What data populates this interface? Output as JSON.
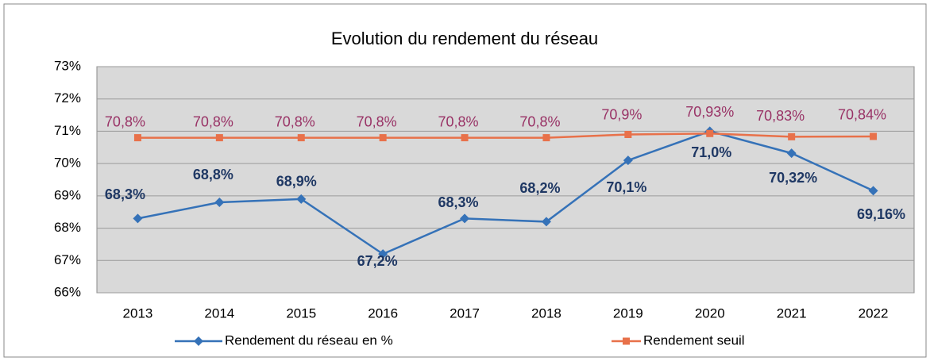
{
  "chart_data": {
    "type": "line",
    "title": "Evolution du rendement du réseau",
    "categories": [
      "2013",
      "2014",
      "2015",
      "2016",
      "2017",
      "2018",
      "2019",
      "2020",
      "2021",
      "2022"
    ],
    "series": [
      {
        "name": "Rendement du réseau en %",
        "color": "#3572b8",
        "values": [
          68.3,
          68.8,
          68.9,
          67.2,
          68.3,
          68.2,
          70.1,
          71.0,
          70.32,
          69.16
        ],
        "value_labels": [
          "68,3%",
          "68,8%",
          "68,9%",
          "67,2%",
          "68,3%",
          "68,2%",
          "70,1%",
          "71,0%",
          "70,32%",
          "69,16%"
        ]
      },
      {
        "name": "Rendement seuil",
        "color": "#e8714a",
        "values": [
          70.8,
          70.8,
          70.8,
          70.8,
          70.8,
          70.8,
          70.9,
          70.93,
          70.83,
          70.84
        ],
        "value_labels": [
          "70,8%",
          "70,8%",
          "70,8%",
          "70,8%",
          "70,8%",
          "70,8%",
          "70,9%",
          "70,93%",
          "70,83%",
          "70,84%"
        ]
      }
    ],
    "ylim": [
      66,
      73
    ],
    "yticks": [
      {
        "value": 66,
        "label": "66%"
      },
      {
        "value": 67,
        "label": "67%"
      },
      {
        "value": 68,
        "label": "68%"
      },
      {
        "value": 69,
        "label": "69%"
      },
      {
        "value": 70,
        "label": "70%"
      },
      {
        "value": 71,
        "label": "71%"
      },
      {
        "value": 72,
        "label": "72%"
      },
      {
        "value": 73,
        "label": "73%"
      }
    ],
    "grid": true,
    "legend": "bottom"
  }
}
